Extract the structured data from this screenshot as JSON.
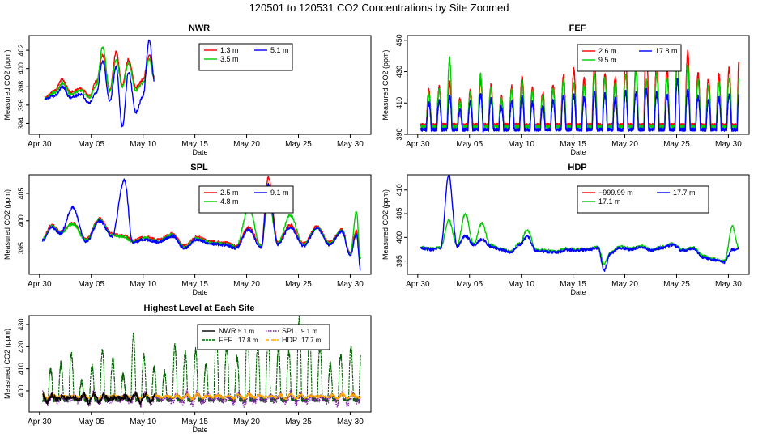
{
  "figure_title": "120501  to  120531 CO2 Concentrations by Site Zoomed",
  "colors": {
    "red": "#ff0000",
    "green": "#00cc00",
    "blue": "#0000ff",
    "black": "#000000",
    "dark_green": "#006400",
    "purple": "#7b1fa2",
    "orange": "#ffa500",
    "axis": "#000000"
  },
  "chart_data": [
    {
      "type": "line",
      "title": "NWR",
      "xlabel": "Date",
      "ylabel": "Measured CO2 (ppm)",
      "xlim": [
        0,
        33
      ],
      "ylim": [
        392.8,
        403.6
      ],
      "x_ticks": [
        1,
        6,
        11,
        16,
        21,
        26,
        31
      ],
      "x_tick_labels": [
        "Apr 30",
        "May 05",
        "May 10",
        "May 15",
        "May 20",
        "May 25",
        "May 30"
      ],
      "y_ticks": [
        394,
        396,
        398,
        400,
        402
      ],
      "y_tick_labels": [
        "394",
        "396",
        "398",
        "400",
        "402"
      ],
      "data_end": 12.2,
      "legend": [
        {
          "label": "1.3 m",
          "color": "#ff0000"
        },
        {
          "label": "5.1 m",
          "color": "#0000ff"
        },
        {
          "label": "3.5 m",
          "color": "#00cc00"
        }
      ],
      "series": [
        {
          "name": "1.3 m",
          "color": "#ff0000",
          "x": [
            1.5,
            2.5,
            3.2,
            4.0,
            5.0,
            5.8,
            6.5,
            7.1,
            7.8,
            8.4,
            9.0,
            9.6,
            10.3,
            11.0,
            11.6,
            12.1
          ],
          "y": [
            396.8,
            397.6,
            398.8,
            397.4,
            397.8,
            397.0,
            398.6,
            401.5,
            397.6,
            401.8,
            398.2,
            401.0,
            397.9,
            398.8,
            401.5,
            399.0
          ]
        },
        {
          "name": "3.5 m",
          "color": "#00cc00",
          "x": [
            1.5,
            2.5,
            3.2,
            4.0,
            5.0,
            5.8,
            6.5,
            7.1,
            7.8,
            8.4,
            9.0,
            9.6,
            10.3,
            11.0,
            11.6,
            12.1
          ],
          "y": [
            396.7,
            397.4,
            398.4,
            397.2,
            397.6,
            396.8,
            398.2,
            402.4,
            397.4,
            401.0,
            398.0,
            400.6,
            397.6,
            398.4,
            401.0,
            398.8
          ]
        },
        {
          "name": "5.1 m",
          "color": "#0000ff",
          "x": [
            1.5,
            2.5,
            3.2,
            4.0,
            5.0,
            5.8,
            6.5,
            7.1,
            7.8,
            8.4,
            9.0,
            9.6,
            10.3,
            11.0,
            11.6,
            12.1
          ],
          "y": [
            396.6,
            397.0,
            398.0,
            396.8,
            397.2,
            396.2,
            397.4,
            400.8,
            396.4,
            400.2,
            393.6,
            399.6,
            395.2,
            397.0,
            403.2,
            398.6
          ]
        }
      ]
    },
    {
      "type": "line",
      "title": "FEF",
      "xlabel": "Date",
      "ylabel": "Measured CO2 (ppm)",
      "xlim": [
        0,
        33
      ],
      "ylim": [
        390,
        453
      ],
      "x_ticks": [
        1,
        6,
        11,
        16,
        21,
        26,
        31
      ],
      "x_tick_labels": [
        "Apr 30",
        "May 05",
        "May 10",
        "May 15",
        "May 20",
        "May 25",
        "May 30"
      ],
      "y_ticks": [
        390,
        410,
        430,
        450
      ],
      "y_tick_labels": [
        "390",
        "410",
        "430",
        "450"
      ],
      "data_end": 32.0,
      "legend": [
        {
          "label": "2.6 m",
          "color": "#ff0000"
        },
        {
          "label": "17.8 m",
          "color": "#0000ff"
        },
        {
          "label": "9.5 m",
          "color": "#00cc00"
        }
      ],
      "series": [
        {
          "name": "2.6 m",
          "color": "#ff0000",
          "peaks": [
            418,
            420,
            423,
            412,
            418,
            424,
            421,
            414,
            420,
            426,
            419,
            416,
            421,
            427,
            431,
            425,
            434,
            429,
            426,
            437,
            433,
            447,
            436,
            431,
            438,
            442,
            429,
            425,
            428,
            432,
            443
          ],
          "trough": 396
        },
        {
          "name": "9.5 m",
          "color": "#00cc00",
          "peaks": [
            416,
            418,
            438,
            410,
            416,
            428,
            419,
            412,
            418,
            423,
            417,
            414,
            418,
            424,
            422,
            420,
            428,
            425,
            422,
            428,
            430,
            424,
            428,
            426,
            440,
            433,
            424,
            420,
            423,
            426,
            430
          ],
          "trough": 395
        },
        {
          "name": "17.8 m",
          "color": "#0000ff",
          "peaks": [
            410,
            411,
            414,
            405,
            410,
            415,
            412,
            407,
            411,
            414,
            410,
            408,
            411,
            414,
            415,
            413,
            417,
            415,
            413,
            417,
            416,
            418,
            416,
            415,
            425,
            418,
            414,
            411,
            413,
            415,
            418
          ],
          "trough": 393
        }
      ]
    },
    {
      "type": "line",
      "title": "SPL",
      "xlabel": "Date",
      "ylabel": "Measured CO2 (ppm)",
      "xlim": [
        0,
        33
      ],
      "ylim": [
        390.2,
        408.4
      ],
      "x_ticks": [
        1,
        6,
        11,
        16,
        21,
        26,
        31
      ],
      "x_tick_labels": [
        "Apr 30",
        "May 05",
        "May 10",
        "May 15",
        "May 20",
        "May 25",
        "May 30"
      ],
      "y_ticks": [
        395,
        400,
        405
      ],
      "y_tick_labels": [
        "395",
        "400",
        "405"
      ],
      "data_end": 32.0,
      "legend": [
        {
          "label": "2.5 m",
          "color": "#ff0000"
        },
        {
          "label": "9.1 m",
          "color": "#0000ff"
        },
        {
          "label": "4.8 m",
          "color": "#00cc00"
        }
      ],
      "series": [
        {
          "name": "2.5 m",
          "color": "#ff0000",
          "x": [
            1.3,
            2.2,
            3.0,
            4.2,
            5.5,
            6.8,
            8.0,
            9.2,
            10.0,
            11.2,
            12.5,
            13.8,
            15.0,
            16.2,
            17.5,
            18.8,
            20.0,
            21.2,
            22.4,
            23.1,
            24.0,
            25.2,
            26.5,
            27.8,
            29.0,
            30.2,
            31.0,
            31.6,
            32.0
          ],
          "y": [
            396.8,
            399.2,
            398.0,
            399.6,
            396.6,
            400.4,
            397.6,
            397.2,
            396.4,
            397.0,
            396.5,
            397.6,
            395.4,
            397.0,
            396.2,
            396.0,
            395.4,
            398.8,
            395.4,
            408.0,
            396.0,
            399.2,
            395.8,
            399.0,
            396.0,
            398.4,
            394.0,
            398.2,
            393.2
          ]
        },
        {
          "name": "4.8 m",
          "color": "#00cc00",
          "x": [
            1.3,
            2.2,
            3.0,
            4.2,
            5.5,
            6.8,
            8.0,
            9.2,
            10.0,
            11.2,
            12.5,
            13.8,
            15.0,
            16.2,
            17.5,
            18.8,
            20.0,
            21.2,
            22.4,
            23.1,
            24.0,
            25.2,
            26.5,
            27.8,
            29.0,
            30.2,
            31.0,
            31.6,
            32.0
          ],
          "y": [
            396.6,
            399.0,
            397.8,
            399.4,
            396.4,
            400.2,
            397.4,
            397.0,
            396.2,
            396.8,
            396.3,
            397.4,
            395.2,
            396.8,
            396.0,
            395.8,
            395.2,
            402.4,
            395.2,
            404.0,
            395.8,
            401.0,
            395.6,
            398.8,
            395.8,
            398.2,
            393.8,
            401.6,
            392.8
          ]
        },
        {
          "name": "9.1 m",
          "color": "#0000ff",
          "x": [
            1.3,
            2.2,
            3.0,
            4.2,
            5.5,
            6.8,
            8.0,
            9.2,
            10.0,
            11.2,
            12.5,
            13.8,
            15.0,
            16.2,
            17.5,
            18.8,
            20.0,
            21.2,
            22.4,
            23.1,
            24.0,
            25.2,
            26.5,
            27.8,
            29.0,
            30.2,
            31.0,
            31.6,
            32.0
          ],
          "y": [
            396.4,
            398.8,
            397.6,
            402.4,
            396.2,
            400.0,
            397.2,
            407.4,
            396.0,
            396.6,
            396.1,
            397.2,
            395.0,
            396.6,
            395.8,
            395.6,
            395.0,
            398.4,
            395.0,
            406.6,
            395.6,
            398.8,
            395.4,
            398.6,
            395.6,
            398.0,
            393.6,
            397.6,
            391.0
          ]
        }
      ]
    },
    {
      "type": "line",
      "title": "HDP",
      "xlabel": "Date",
      "ylabel": "Measured CO2 (ppm)",
      "xlim": [
        0,
        33
      ],
      "ylim": [
        392.2,
        413.2
      ],
      "x_ticks": [
        1,
        6,
        11,
        16,
        21,
        26,
        31
      ],
      "x_tick_labels": [
        "Apr 30",
        "May 05",
        "May 10",
        "May 15",
        "May 20",
        "May 25",
        "May 30"
      ],
      "y_ticks": [
        395,
        400,
        405,
        410
      ],
      "y_tick_labels": [
        "395",
        "400",
        "405",
        "410"
      ],
      "data_end": 32.0,
      "legend": [
        {
          "label": "−999.99 m",
          "color": "#ff0000"
        },
        {
          "label": "17.7 m",
          "color": "#0000ff"
        },
        {
          "label": "17.1 m",
          "color": "#00cc00"
        }
      ],
      "series": [
        {
          "name": "17.1 m",
          "color": "#00cc00",
          "x": [
            1.3,
            2.2,
            3.2,
            4.0,
            4.8,
            5.6,
            6.4,
            7.2,
            8.0,
            9.0,
            10.0,
            10.8,
            11.6,
            12.4,
            13.4,
            14.4,
            15.4,
            16.4,
            17.4,
            18.4,
            19.0,
            19.6,
            20.6,
            21.6,
            22.6,
            23.6,
            24.6,
            25.6,
            26.6,
            27.6,
            28.6,
            29.6,
            30.6,
            31.4,
            32.0
          ],
          "y": [
            398.0,
            397.6,
            397.8,
            403.6,
            398.4,
            405.0,
            398.6,
            403.0,
            398.4,
            397.6,
            397.0,
            398.6,
            401.6,
            397.4,
            397.2,
            397.0,
            397.6,
            397.4,
            397.6,
            398.0,
            394.4,
            396.8,
            398.0,
            397.6,
            398.2,
            397.4,
            398.0,
            398.6,
            397.4,
            397.8,
            396.0,
            395.4,
            395.0,
            402.2,
            397.8
          ]
        },
        {
          "name": "17.7 m",
          "color": "#0000ff",
          "x": [
            1.3,
            2.2,
            3.2,
            4.0,
            4.8,
            5.6,
            6.4,
            7.2,
            8.0,
            9.0,
            10.0,
            10.8,
            11.6,
            12.4,
            13.4,
            14.4,
            15.4,
            16.4,
            17.4,
            18.4,
            19.0,
            19.6,
            20.6,
            21.6,
            22.6,
            23.6,
            24.6,
            25.6,
            26.6,
            27.6,
            28.6,
            29.6,
            30.6,
            31.4,
            32.0
          ],
          "y": [
            397.8,
            397.4,
            397.6,
            413.0,
            398.2,
            400.4,
            398.4,
            399.6,
            398.2,
            397.4,
            396.8,
            398.4,
            400.2,
            397.2,
            397.0,
            396.8,
            397.4,
            397.2,
            397.4,
            397.8,
            393.0,
            396.6,
            397.8,
            397.4,
            398.0,
            397.2,
            397.8,
            398.4,
            397.2,
            397.6,
            395.8,
            395.2,
            394.8,
            397.4,
            397.6
          ]
        }
      ]
    },
    {
      "type": "line",
      "title": "Highest Level at Each Site",
      "xlabel": "Date",
      "ylabel": "Measured CO2 (ppm)",
      "xlim": [
        0,
        33
      ],
      "ylim": [
        390.5,
        434
      ],
      "x_ticks": [
        1,
        6,
        11,
        16,
        21,
        26,
        31
      ],
      "x_tick_labels": [
        "Apr 30",
        "May 05",
        "May 10",
        "May 15",
        "May 20",
        "May 25",
        "May 30"
      ],
      "y_ticks": [
        400,
        410,
        420,
        430
      ],
      "y_tick_labels": [
        "400",
        "410",
        "420",
        "430"
      ],
      "data_end": 32.0,
      "legend": [
        {
          "label": "NWR",
          "height": "5.1 m",
          "color": "#000000",
          "dash": "solid"
        },
        {
          "label": "SPL",
          "height": "9.1 m",
          "color": "#7b1fa2",
          "dash": "dotted"
        },
        {
          "label": "FEF",
          "height": "17.8 m",
          "color": "#006400",
          "dash": "dashed"
        },
        {
          "label": "HDP",
          "height": "17.7 m",
          "color": "#ffa500",
          "dash": "dotdash"
        }
      ],
      "series": [
        {
          "name": "FEF 17.8 m",
          "color": "#006400",
          "peaks": [
            410,
            412,
            417,
            404,
            411,
            418,
            414,
            407,
            425,
            416,
            410,
            408,
            420,
            417,
            418,
            412,
            425,
            420,
            415,
            426,
            420,
            422,
            419,
            418,
            433,
            424,
            420,
            412,
            416,
            419,
            417
          ],
          "trough": 396
        },
        {
          "name": "SPL 9.1 m",
          "color": "#7b1fa2",
          "base": 396.5,
          "amp": 2.5
        },
        {
          "name": "HDP 17.7 m",
          "color": "#ffa500",
          "base": 397.5,
          "amp": 1.0
        },
        {
          "name": "NWR 5.1 m",
          "color": "#000000",
          "base": 396.8,
          "amp": 1.8,
          "end": 12.2
        }
      ]
    }
  ]
}
